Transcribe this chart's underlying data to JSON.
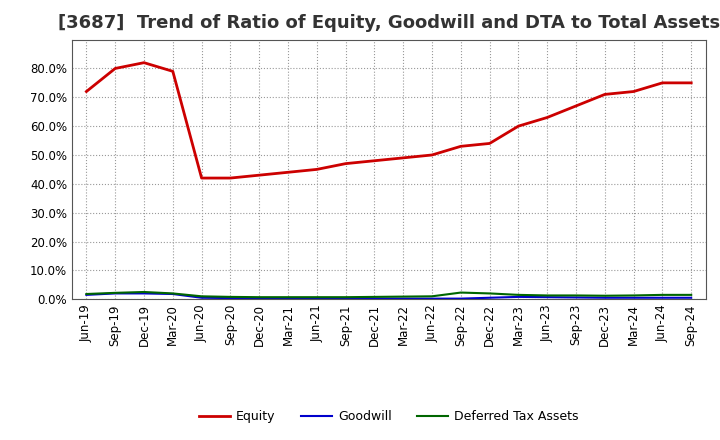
{
  "title": "[3687]  Trend of Ratio of Equity, Goodwill and DTA to Total Assets",
  "x_labels": [
    "Jun-19",
    "Sep-19",
    "Dec-19",
    "Mar-20",
    "Jun-20",
    "Sep-20",
    "Dec-20",
    "Mar-21",
    "Jun-21",
    "Sep-21",
    "Dec-21",
    "Mar-22",
    "Jun-22",
    "Sep-22",
    "Dec-22",
    "Mar-23",
    "Jun-23",
    "Sep-23",
    "Dec-23",
    "Mar-24",
    "Jun-24",
    "Sep-24"
  ],
  "equity": [
    0.72,
    0.8,
    0.82,
    0.79,
    0.42,
    0.42,
    0.43,
    0.44,
    0.45,
    0.47,
    0.48,
    0.49,
    0.5,
    0.53,
    0.54,
    0.6,
    0.63,
    0.67,
    0.71,
    0.72,
    0.75,
    0.75
  ],
  "goodwill": [
    0.015,
    0.02,
    0.02,
    0.018,
    0.005,
    0.004,
    0.003,
    0.002,
    0.002,
    0.002,
    0.002,
    0.002,
    0.002,
    0.002,
    0.005,
    0.008,
    0.007,
    0.006,
    0.005,
    0.005,
    0.005,
    0.005
  ],
  "dta": [
    0.018,
    0.022,
    0.025,
    0.02,
    0.01,
    0.008,
    0.007,
    0.007,
    0.007,
    0.007,
    0.008,
    0.009,
    0.01,
    0.023,
    0.02,
    0.015,
    0.013,
    0.013,
    0.012,
    0.013,
    0.015,
    0.015
  ],
  "equity_color": "#cc0000",
  "goodwill_color": "#0000cc",
  "dta_color": "#006600",
  "background_color": "#ffffff",
  "grid_color": "#999999",
  "ylim": [
    0.0,
    0.9
  ],
  "yticks": [
    0.0,
    0.1,
    0.2,
    0.3,
    0.4,
    0.5,
    0.6,
    0.7,
    0.8
  ],
  "legend_labels": [
    "Equity",
    "Goodwill",
    "Deferred Tax Assets"
  ],
  "title_fontsize": 13,
  "tick_fontsize": 8.5,
  "legend_fontsize": 9
}
